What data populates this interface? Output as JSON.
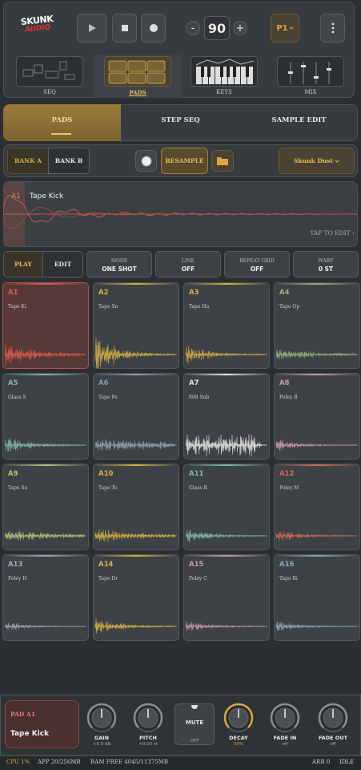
{
  "header": {
    "logo_top": "SKUNK",
    "logo_bottom": "AUDIO",
    "tempo_minus": "-",
    "tempo": "90",
    "tempo_plus": "+",
    "pattern": "P1"
  },
  "tabs": [
    "SEQ",
    "PADS",
    "KEYS",
    "MIX"
  ],
  "mode_tabs": [
    "PADS",
    "STEP SEQ",
    "SAMPLE EDIT"
  ],
  "bank_row": {
    "bank_a": "BANK A",
    "bank_b": "BANK B",
    "resample": "RESAMPLE",
    "kit": "Skunk Dust"
  },
  "sample": {
    "pad": "A1",
    "name": "Tape Kick",
    "hint": "TAP TO EDIT ›"
  },
  "play_edit": [
    "PLAY",
    "EDIT"
  ],
  "controls": [
    {
      "label": "MODE",
      "value": "ONE SHOT"
    },
    {
      "label": "LINK",
      "value": "OFF"
    },
    {
      "label": "REPEAT GRID",
      "value": "OFF"
    },
    {
      "label": "WARP",
      "value": "0 ST"
    }
  ],
  "pads": [
    {
      "id": "A1",
      "name": "Tape Ki",
      "color": "#d9584f"
    },
    {
      "id": "A2",
      "name": "Tape Sn",
      "color": "#d8b044"
    },
    {
      "id": "A3",
      "name": "Tape Ha",
      "color": "#d8b044"
    },
    {
      "id": "A4",
      "name": "Tape Op",
      "color": "#9bb07a"
    },
    {
      "id": "A5",
      "name": "Glass S",
      "color": "#7fb7a8"
    },
    {
      "id": "A6",
      "name": "Tape Pe",
      "color": "#8d9cb0"
    },
    {
      "id": "A7",
      "name": "808 Sub",
      "color": "#e2e2e2"
    },
    {
      "id": "A8",
      "name": "Foley B",
      "color": "#c79aa8"
    },
    {
      "id": "A9",
      "name": "Tape Sn",
      "color": "#b9c07a"
    },
    {
      "id": "A10",
      "name": "Tape To",
      "color": "#d8b044"
    },
    {
      "id": "A11",
      "name": "Glass R",
      "color": "#7fb7a8"
    },
    {
      "id": "A12",
      "name": "Foley M",
      "color": "#d46a55"
    },
    {
      "id": "A13",
      "name": "Foley H",
      "color": "#a9a3b8"
    },
    {
      "id": "A14",
      "name": "Tape Dr",
      "color": "#d8b044"
    },
    {
      "id": "A15",
      "name": "Foley C",
      "color": "#c49aa8"
    },
    {
      "id": "A16",
      "name": "Tape Ri",
      "color": "#8ea2b6"
    }
  ],
  "bottom": {
    "pad_label": "PAD A1",
    "pad_name": "Tape Kick",
    "knobs": [
      {
        "label": "GAIN",
        "value": "+0.0 dB"
      },
      {
        "label": "PITCH",
        "value": "+0.00 st"
      },
      {
        "label": "DECAY",
        "value": "50%"
      },
      {
        "label": "FADE IN",
        "value": "off"
      },
      {
        "label": "FADE OUT",
        "value": "off"
      }
    ],
    "mute": {
      "label": "MUTE",
      "value": "OFF"
    }
  },
  "status": {
    "cpu": "CPU 1%",
    "app": "APP 20/256MB",
    "ram": "RAM FREE 4045/11375MB",
    "arr": "ARR 0",
    "state": "IDLE"
  }
}
